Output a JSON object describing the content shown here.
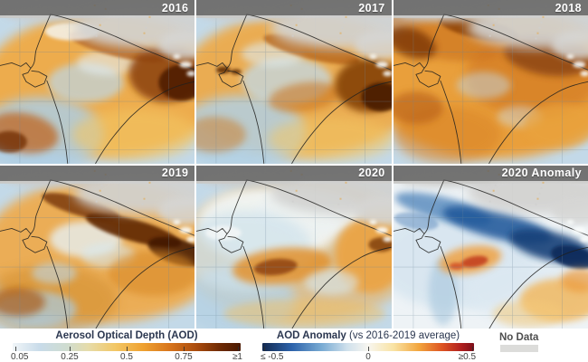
{
  "panels": [
    {
      "label": "2016",
      "type": "aod"
    },
    {
      "label": "2017",
      "type": "aod"
    },
    {
      "label": "2018",
      "type": "aod"
    },
    {
      "label": "2019",
      "type": "aod"
    },
    {
      "label": "2020",
      "type": "aod"
    },
    {
      "label": "2020 Anomaly",
      "type": "anomaly"
    }
  ],
  "legends": {
    "aod": {
      "title": "Aerosol Optical Depth (AOD)",
      "ticks": [
        "0.05",
        "0.25",
        "0.5",
        "0.75",
        "≥1"
      ],
      "gradient": [
        "#f0f5f8 0%",
        "#c8dbe9 12%",
        "#cfdccf 24%",
        "#e6dcab 33%",
        "#f2c766 45%",
        "#efa231 57%",
        "#d7741c 69%",
        "#a84a0d 81%",
        "#6e2a04 91%",
        "#4a1902 100%"
      ]
    },
    "anomaly": {
      "title": "AOD Anomaly",
      "subtitle": "(vs 2016-2019 average)",
      "ticks": [
        "≤ -0.5",
        "0",
        "≥0.5"
      ],
      "gradient": [
        "#13294f 0%",
        "#2d63ab 14%",
        "#79abd3 28%",
        "#cfe0ec 40%",
        "#f8f6f0 50%",
        "#f9e3a4 62%",
        "#f2a53d 74%",
        "#dd5322 85%",
        "#b01f1f 94%",
        "#7d0f1a 100%"
      ]
    },
    "no_data": {
      "label": "No Data",
      "swatch": "#dcdcda"
    }
  },
  "colors": {
    "aod_sea_base": "#c3d9e8",
    "anomaly_base": "#eef3f6",
    "no_data_fill": "#c9c9c7",
    "year_bar": "#5d5d5d",
    "year_text": "#ffffff"
  }
}
